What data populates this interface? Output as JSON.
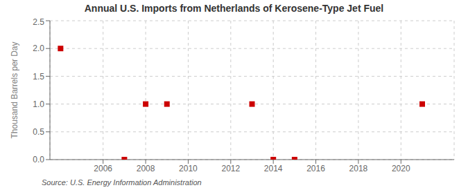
{
  "chart_data": {
    "type": "scatter",
    "title": "Annual U.S. Imports from Netherlands of Kerosene-Type Jet Fuel",
    "y_label": "Thousand Barrels per Day",
    "annotations": [
      "Source: U.S. Energy Information Administration"
    ],
    "x": [
      2004,
      2007,
      2008,
      2009,
      2013,
      2014,
      2015,
      2021
    ],
    "values": [
      2.0,
      0.0,
      1.0,
      1.0,
      1.0,
      0.0,
      0.0,
      1.0
    ],
    "color": "#cc0000",
    "marker": "square",
    "xlim": [
      2003.5,
      2022.5
    ],
    "ylim": [
      0.0,
      2.5
    ],
    "xticks": [
      2006,
      2008,
      2010,
      2012,
      2014,
      2016,
      2018,
      2020
    ],
    "yticks": [
      {
        "value": 0,
        "label": "0.0"
      },
      0.5,
      {
        "value": 1,
        "label": "1.0"
      },
      1.5,
      {
        "value": 2,
        "label": "2.0"
      },
      2.5
    ],
    "grid": true
  }
}
